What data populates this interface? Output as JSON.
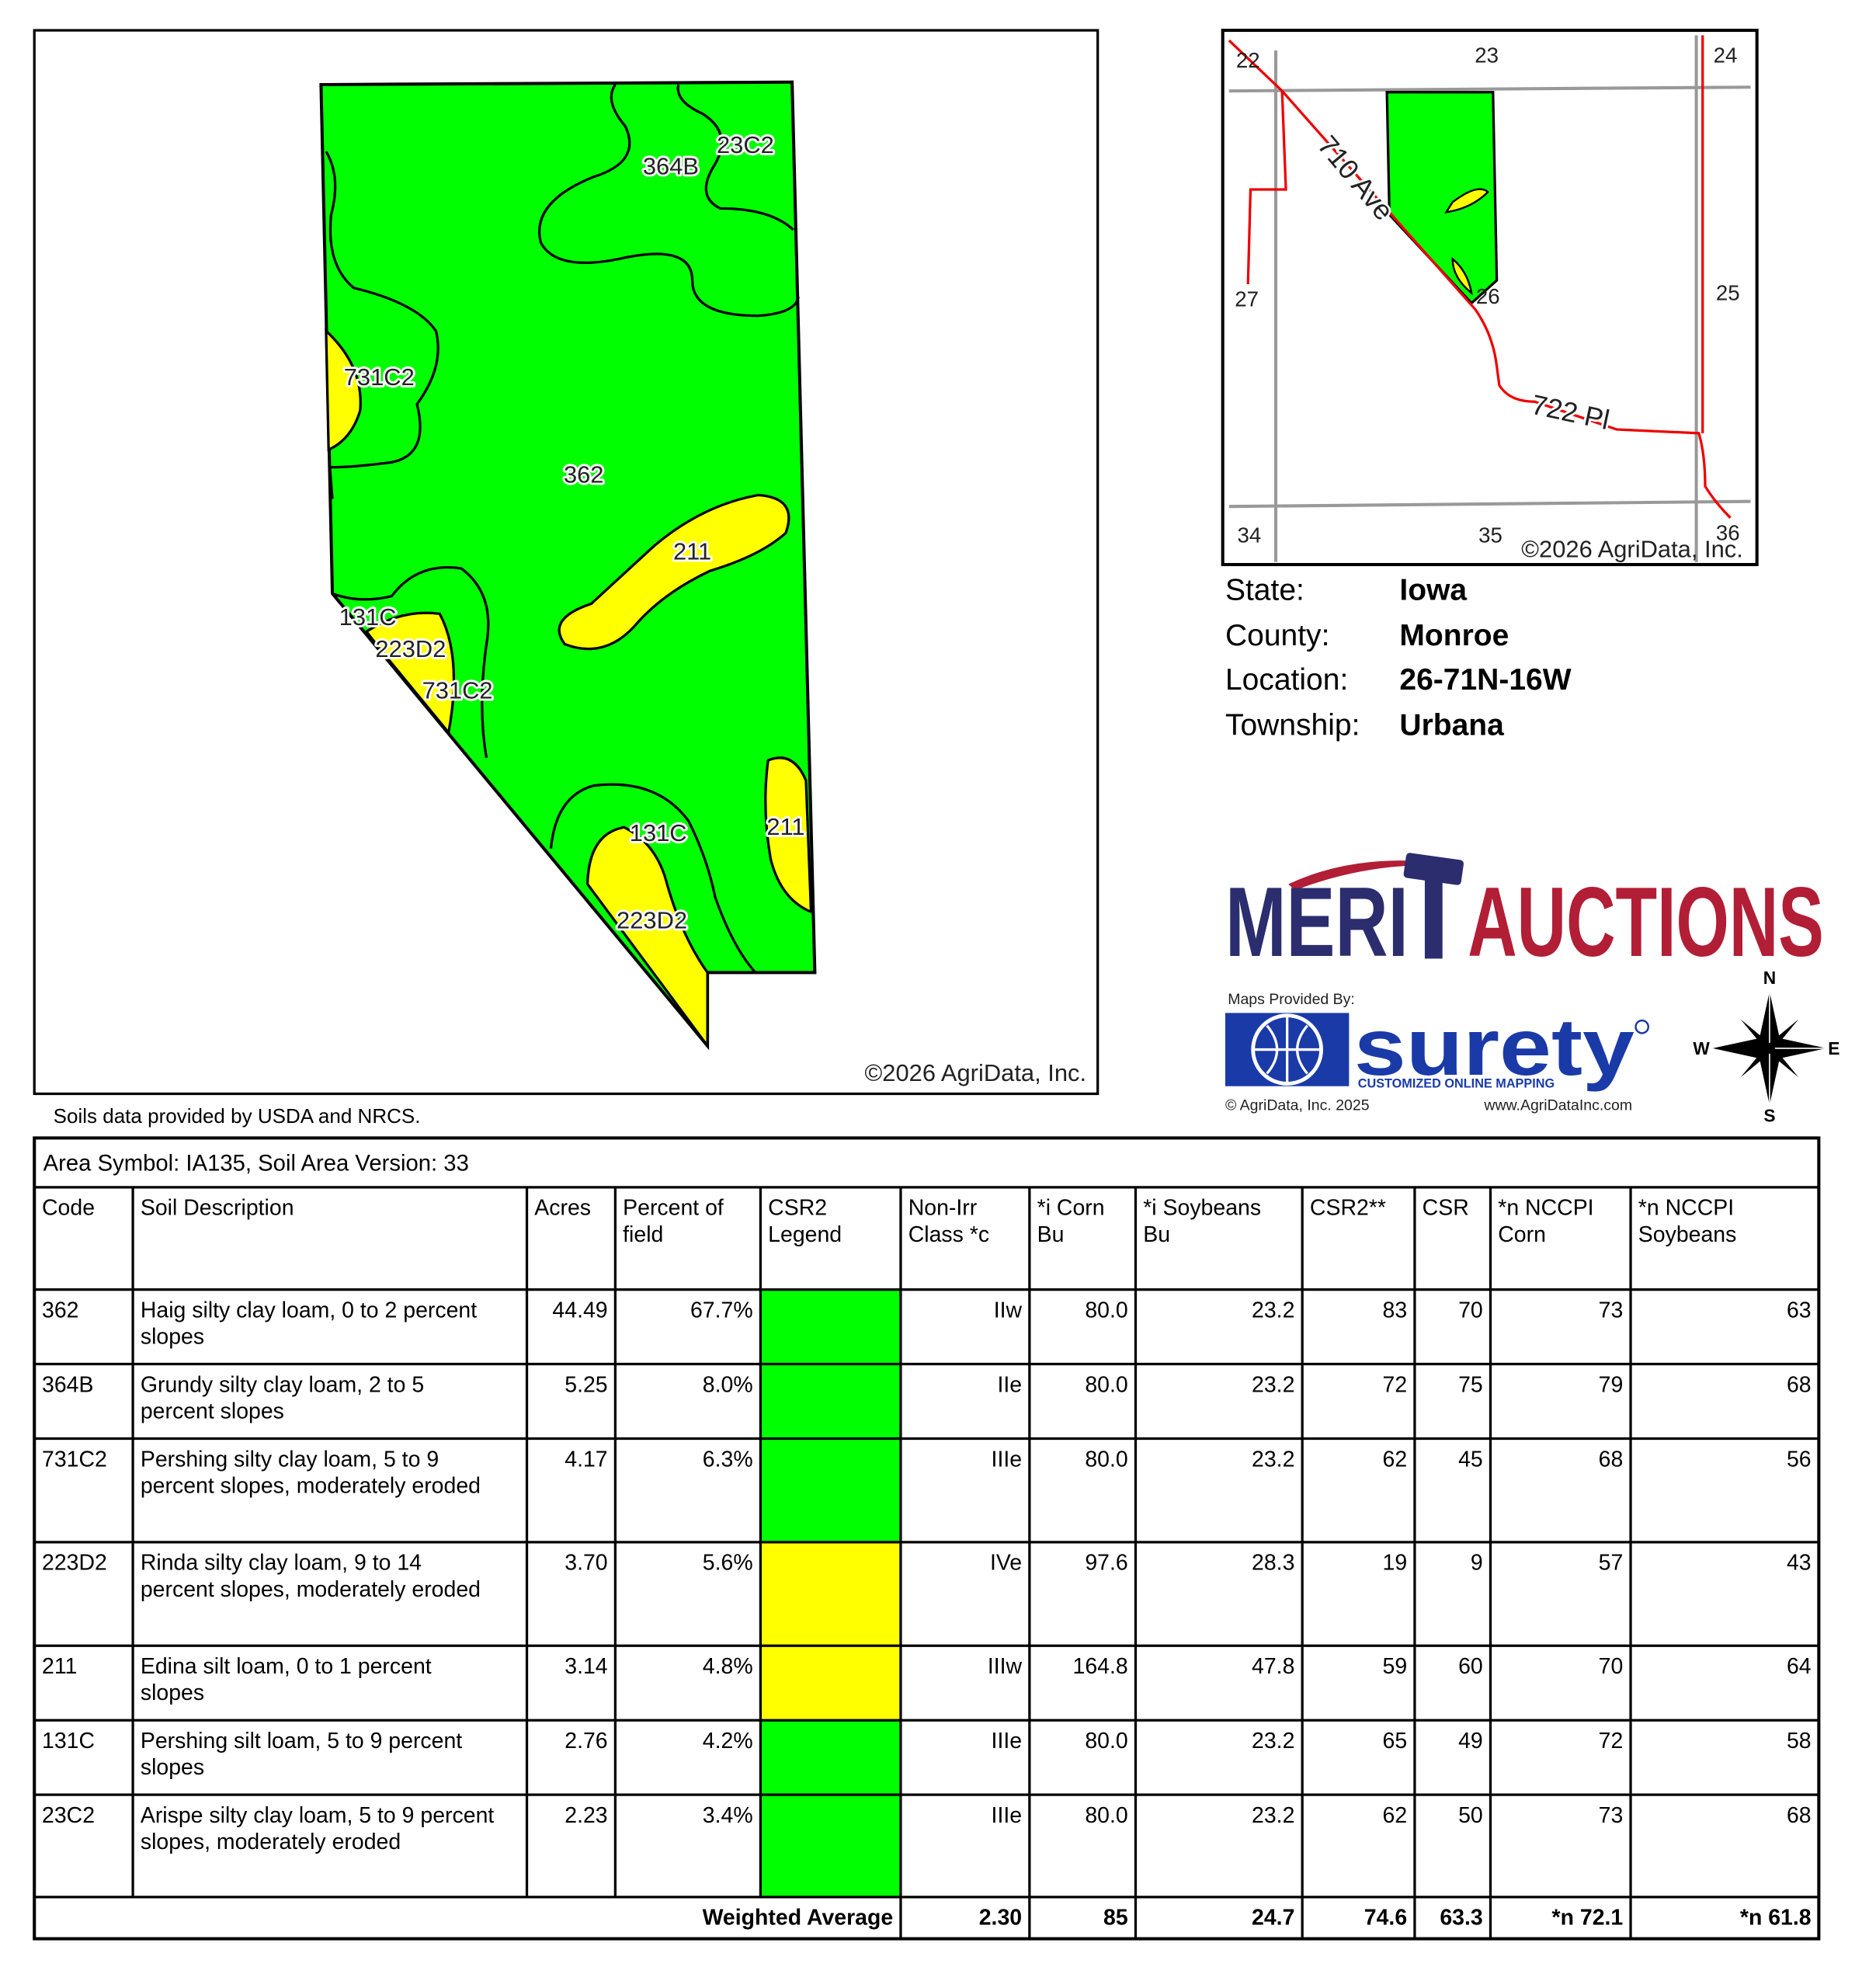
{
  "map": {
    "labels": [
      "364B",
      "23C2",
      "731C2",
      "362",
      "211",
      "131C",
      "223D2",
      "731C2",
      "131C",
      "211",
      "223D2"
    ],
    "copyright": "©2026 AgriData, Inc."
  },
  "source_note": "Soils data provided by USDA and NRCS.",
  "locator": {
    "section_numbers": [
      "22",
      "23",
      "24",
      "27",
      "26",
      "25",
      "34",
      "35",
      "36"
    ],
    "roads": [
      "710 Ave",
      "722 Pl"
    ],
    "copyright": "©2026 AgriData, Inc."
  },
  "location": [
    {
      "label": "State:",
      "value": "Iowa"
    },
    {
      "label": "County:",
      "value": "Monroe"
    },
    {
      "label": "Location:",
      "value": "26-71N-16W"
    },
    {
      "label": "Township:",
      "value": "Urbana"
    }
  ],
  "logo": {
    "left": "MERI",
    "right": "AUCTIONS"
  },
  "credits": {
    "provided_by": "Maps Provided By:",
    "brand": "surety",
    "tagline": "CUSTOMIZED ONLINE MAPPING",
    "copyright": "© AgriData, Inc. 2025",
    "url": "www.AgriDataInc.com"
  },
  "compass": {
    "n": "N",
    "e": "E",
    "s": "S",
    "w": "W"
  },
  "table": {
    "caption": "Area Symbol: IA135, Soil Area Version: 33",
    "header": [
      [
        "Code"
      ],
      [
        "Soil Description"
      ],
      [
        "Acres"
      ],
      [
        "Percent of",
        "field"
      ],
      [
        "CSR2",
        "Legend"
      ],
      [
        "Non-Irr",
        "Class *c"
      ],
      [
        "*i Corn",
        "Bu"
      ],
      [
        "*i Soybeans",
        "Bu"
      ],
      [
        "CSR2**"
      ],
      [
        "CSR"
      ],
      [
        "*n NCCPI",
        "Corn"
      ],
      [
        "*n NCCPI",
        "Soybeans"
      ]
    ],
    "rows": [
      {
        "code": "362",
        "description": [
          "Haig silty clay loam, 0 to 2 percent",
          "slopes"
        ],
        "acres": "44.49",
        "percent": "67.7%",
        "legend_color": "#00ff00",
        "class": "IIw",
        "corn": "80.0",
        "soybeans": "23.2",
        "csr2": "83",
        "csr": "70",
        "nccpi_corn": "73",
        "nccpi_soybeans": "63"
      },
      {
        "code": "364B",
        "description": [
          "Grundy silty clay loam, 2 to 5",
          "percent slopes"
        ],
        "acres": "5.25",
        "percent": "8.0%",
        "legend_color": "#00ff00",
        "class": "IIe",
        "corn": "80.0",
        "soybeans": "23.2",
        "csr2": "72",
        "csr": "75",
        "nccpi_corn": "79",
        "nccpi_soybeans": "68"
      },
      {
        "code": "731C2",
        "description": [
          "Pershing silty clay loam, 5 to 9",
          "percent slopes, moderately eroded"
        ],
        "acres": "4.17",
        "percent": "6.3%",
        "legend_color": "#00ff00",
        "class": "IIIe",
        "corn": "80.0",
        "soybeans": "23.2",
        "csr2": "62",
        "csr": "45",
        "nccpi_corn": "68",
        "nccpi_soybeans": "56"
      },
      {
        "code": "223D2",
        "description": [
          "Rinda silty clay loam, 9 to 14",
          "percent slopes, moderately eroded"
        ],
        "acres": "3.70",
        "percent": "5.6%",
        "legend_color": "#ffff00",
        "class": "IVe",
        "corn": "97.6",
        "soybeans": "28.3",
        "csr2": "19",
        "csr": "9",
        "nccpi_corn": "57",
        "nccpi_soybeans": "43"
      },
      {
        "code": "211",
        "description": [
          "Edina silt loam, 0 to 1 percent",
          "slopes"
        ],
        "acres": "3.14",
        "percent": "4.8%",
        "legend_color": "#ffff00",
        "class": "IIIw",
        "corn": "164.8",
        "soybeans": "47.8",
        "csr2": "59",
        "csr": "60",
        "nccpi_corn": "70",
        "nccpi_soybeans": "64"
      },
      {
        "code": "131C",
        "description": [
          "Pershing silt loam, 5 to 9 percent",
          "slopes"
        ],
        "acres": "2.76",
        "percent": "4.2%",
        "legend_color": "#00ff00",
        "class": "IIIe",
        "corn": "80.0",
        "soybeans": "23.2",
        "csr2": "65",
        "csr": "49",
        "nccpi_corn": "72",
        "nccpi_soybeans": "58"
      },
      {
        "code": "23C2",
        "description": [
          "Arispe silty clay loam, 5 to 9 percent",
          "slopes, moderately eroded"
        ],
        "acres": "2.23",
        "percent": "3.4%",
        "legend_color": "#00ff00",
        "class": "IIIe",
        "corn": "80.0",
        "soybeans": "23.2",
        "csr2": "62",
        "csr": "50",
        "nccpi_corn": "73",
        "nccpi_soybeans": "68"
      }
    ],
    "footer": {
      "label": "Weighted Average",
      "values": [
        "2.30",
        "85",
        "24.7",
        "74.6",
        "63.3",
        "*n 72.1",
        "*n 61.8"
      ]
    }
  }
}
